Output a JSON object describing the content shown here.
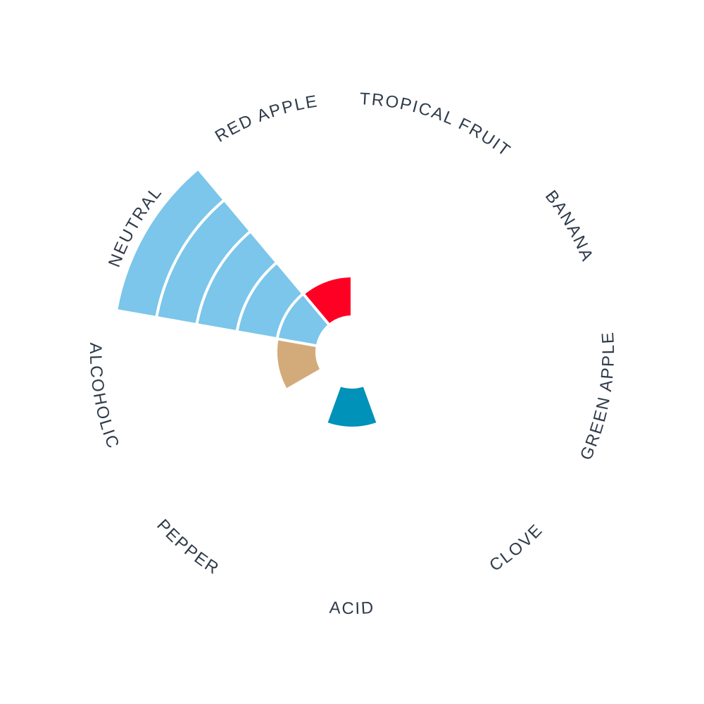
{
  "chart_data": {
    "type": "polar-area",
    "categories": [
      "TROPICAL FRUIT",
      "BANANA",
      "GREEN APPLE",
      "CLOVE",
      "ACID",
      "PEPPER",
      "ALCOHOLIC",
      "NEUTRAL",
      "RED APPLE"
    ],
    "values": [
      0,
      0,
      0,
      0,
      1,
      0,
      1,
      5,
      1
    ],
    "max": 5,
    "colors": {
      "ACID": "#0092b8",
      "ALCOHOLIC": "#d3ab7a",
      "NEUTRAL": "#7bc6ea",
      "RED APPLE": "#ff0025",
      "background": "#f7f8f9",
      "gridline": "#ffffff",
      "label": "#2f3b4a"
    }
  }
}
